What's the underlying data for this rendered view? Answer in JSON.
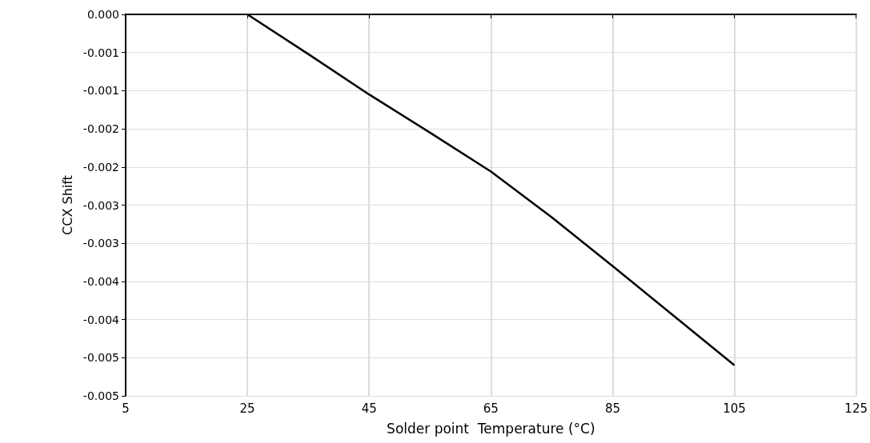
{
  "chart_data": {
    "type": "line",
    "xlabel": "Solder point  Temperature (°C)",
    "ylabel": "CCX Shift",
    "x": [
      25,
      35,
      45,
      55,
      65,
      75,
      85,
      95,
      105
    ],
    "series": [
      {
        "color": "#000000",
        "values": [
          0,
          -0.00052,
          -0.00105,
          -0.00155,
          -0.00206,
          -0.00266,
          -0.0033,
          -0.00395,
          -0.0046
        ]
      }
    ],
    "xlim": [
      5,
      125
    ],
    "xticks": [
      5,
      25,
      45,
      65,
      85,
      105,
      125
    ],
    "ylim": [
      -0.005,
      0
    ],
    "yticks": [
      {
        "value": 0,
        "label": "0.000"
      },
      {
        "value": -0.0005,
        "label": "-0.001"
      },
      {
        "value": -0.001,
        "label": "-0.001"
      },
      {
        "value": -0.0015,
        "label": "-0.002"
      },
      {
        "value": -0.002,
        "label": "-0.002"
      },
      {
        "value": -0.0025,
        "label": "-0.003"
      },
      {
        "value": -0.003,
        "label": "-0.003"
      },
      {
        "value": -0.0035,
        "label": "-0.004"
      },
      {
        "value": -0.004,
        "label": "-0.004"
      },
      {
        "value": -0.0045,
        "label": "-0.005"
      },
      {
        "value": -0.005,
        "label": "-0.005"
      }
    ],
    "grid": true,
    "marker": "none",
    "line_style": "solid"
  }
}
